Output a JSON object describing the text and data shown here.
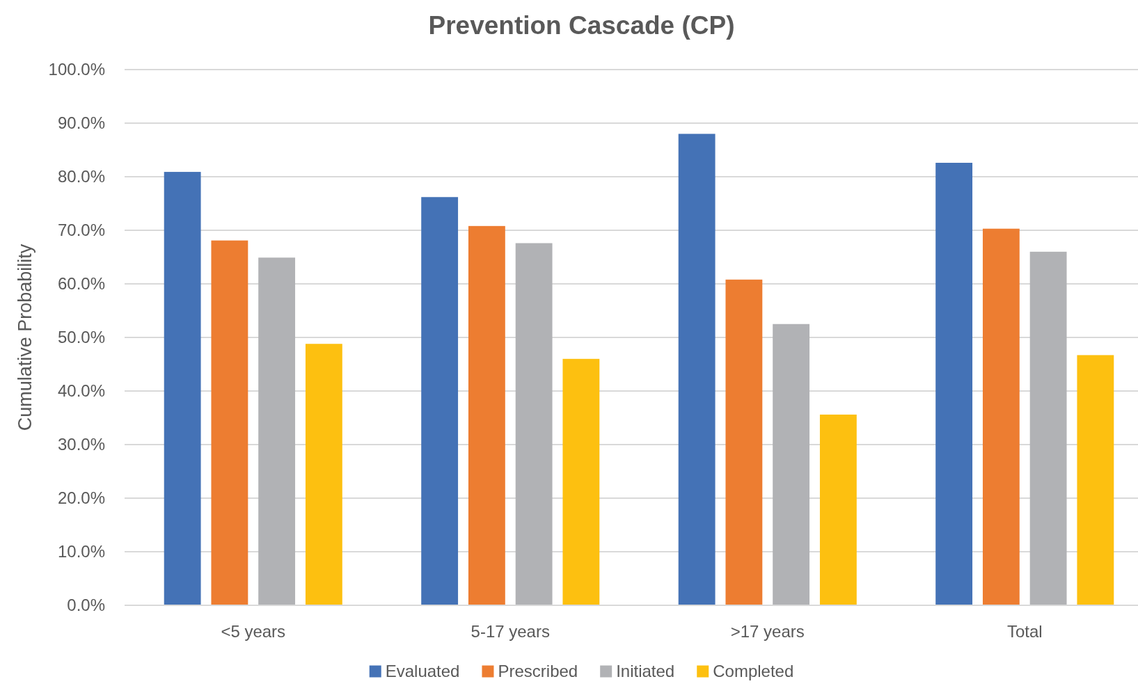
{
  "chart_data": {
    "type": "bar",
    "title": "Prevention Cascade (CP)",
    "ylabel": "Cumulative Probability",
    "categories": [
      "<5 years",
      "5-17 years",
      ">17 years",
      "Total"
    ],
    "series": [
      {
        "name": "Evaluated",
        "color": "#4472b6",
        "values": [
          80.9,
          76.2,
          88.0,
          82.6
        ]
      },
      {
        "name": "Prescribed",
        "color": "#ed7d31",
        "values": [
          68.1,
          70.8,
          60.8,
          70.3
        ]
      },
      {
        "name": "Initiated",
        "color": "#b1b2b5",
        "values": [
          64.9,
          67.6,
          52.5,
          66.0
        ]
      },
      {
        "name": "Completed",
        "color": "#fdc010",
        "values": [
          48.8,
          46.0,
          35.6,
          46.7
        ]
      }
    ],
    "ylim": [
      0,
      100
    ],
    "yticks": [
      {
        "value": 0,
        "label": "0.0%"
      },
      {
        "value": 10,
        "label": "10.0%"
      },
      {
        "value": 20,
        "label": "20.0%"
      },
      {
        "value": 30,
        "label": "30.0%"
      },
      {
        "value": 40,
        "label": "40.0%"
      },
      {
        "value": 50,
        "label": "50.0%"
      },
      {
        "value": 60,
        "label": "60.0%"
      },
      {
        "value": 70,
        "label": "70.0%"
      },
      {
        "value": 80,
        "label": "80.0%"
      },
      {
        "value": 90,
        "label": "90.0%"
      },
      {
        "value": 100,
        "label": "100.0%"
      }
    ],
    "grid": "y",
    "legend": "bottom"
  }
}
